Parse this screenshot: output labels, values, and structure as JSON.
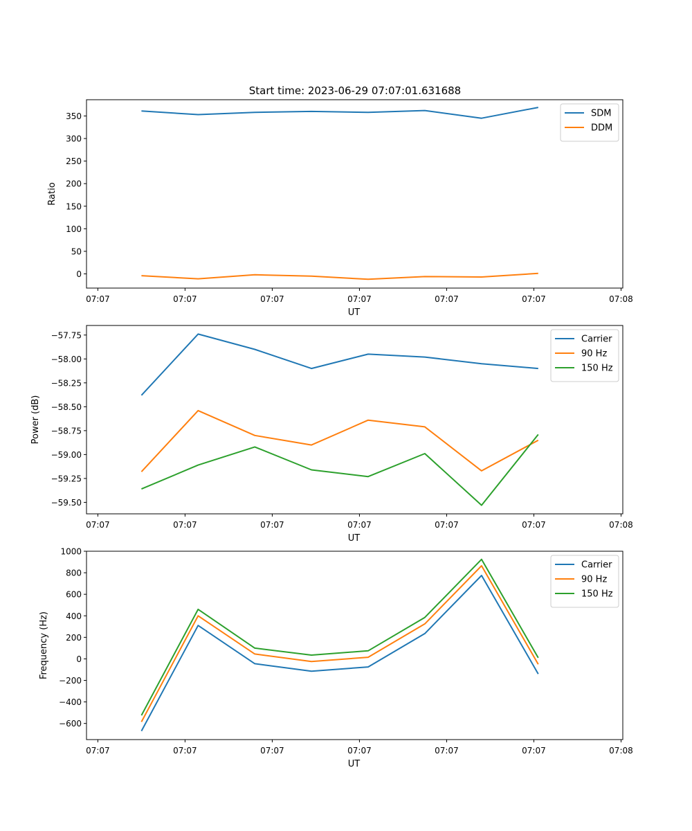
{
  "figure": {
    "title": "Start time: 2023-06-29 07:07:01.631688"
  },
  "chart_data": [
    {
      "type": "line",
      "title": "Start time: 2023-06-29 07:07:01.631688",
      "xlabel": "UT",
      "ylabel": "Ratio",
      "x_tick_labels": [
        "07:07",
        "07:07",
        "07:07",
        "07:07",
        "07:07",
        "07:07",
        "07:08"
      ],
      "x_ticks_s": [
        0,
        1,
        2,
        3,
        4,
        5,
        6
      ],
      "x_s": [
        0.5,
        1.15,
        1.8,
        2.45,
        3.1,
        3.75,
        4.4,
        5.05
      ],
      "xlim_s": [
        -0.13,
        6.02
      ],
      "y_ticks": [
        0,
        50,
        100,
        150,
        200,
        250,
        300,
        350
      ],
      "ylim": [
        -31.5,
        386
      ],
      "grid": false,
      "legend": "top-right",
      "series": [
        {
          "name": "SDM",
          "color": "#1f77b4",
          "values": [
            361,
            353,
            358,
            360,
            358,
            362,
            345,
            369
          ]
        },
        {
          "name": "DDM",
          "color": "#ff7f0e",
          "values": [
            -4,
            -11,
            -2,
            -5,
            -12,
            -6,
            -7,
            1
          ]
        }
      ]
    },
    {
      "type": "line",
      "xlabel": "UT",
      "ylabel": "Power (dB)",
      "x_tick_labels": [
        "07:07",
        "07:07",
        "07:07",
        "07:07",
        "07:07",
        "07:07",
        "07:08"
      ],
      "x_ticks_s": [
        0,
        1,
        2,
        3,
        4,
        5,
        6
      ],
      "x_s": [
        0.5,
        1.15,
        1.8,
        2.45,
        3.1,
        3.75,
        4.4,
        5.05
      ],
      "xlim_s": [
        -0.13,
        6.02
      ],
      "y_ticks": [
        -57.75,
        -58.0,
        -58.25,
        -58.5,
        -58.75,
        -59.0,
        -59.25,
        -59.5
      ],
      "y_tick_labels": [
        "−57.75",
        "−58.00",
        "−58.25",
        "−58.50",
        "−58.75",
        "−59.00",
        "−59.25",
        "−59.50"
      ],
      "ylim": [
        -59.62,
        -57.65
      ],
      "grid": false,
      "legend": "top-right",
      "series": [
        {
          "name": "Carrier",
          "color": "#1f77b4",
          "values": [
            -58.38,
            -57.74,
            -57.9,
            -58.1,
            -57.95,
            -57.98,
            -58.05,
            -58.1
          ]
        },
        {
          "name": "90 Hz",
          "color": "#ff7f0e",
          "values": [
            -59.18,
            -58.54,
            -58.8,
            -58.9,
            -58.64,
            -58.71,
            -59.17,
            -58.85
          ]
        },
        {
          "name": "150 Hz",
          "color": "#2ca02c",
          "values": [
            -59.36,
            -59.11,
            -58.92,
            -59.16,
            -59.23,
            -58.99,
            -59.53,
            -58.79
          ]
        }
      ]
    },
    {
      "type": "line",
      "xlabel": "UT",
      "ylabel": "Frequency (Hz)",
      "x_tick_labels": [
        "07:07",
        "07:07",
        "07:07",
        "07:07",
        "07:07",
        "07:07",
        "07:08"
      ],
      "x_ticks_s": [
        0,
        1,
        2,
        3,
        4,
        5,
        6
      ],
      "x_s": [
        0.5,
        1.15,
        1.8,
        2.45,
        3.1,
        3.75,
        4.4,
        5.05
      ],
      "xlim_s": [
        -0.13,
        6.02
      ],
      "y_ticks": [
        1000,
        800,
        600,
        400,
        200,
        0,
        -200,
        -400,
        -600
      ],
      "y_tick_labels": [
        "1000",
        "800",
        "600",
        "400",
        "200",
        "0",
        "−200",
        "−400",
        "−600"
      ],
      "ylim": [
        -750,
        1000
      ],
      "grid": false,
      "legend": "top-right",
      "series": [
        {
          "name": "Carrier",
          "color": "#1f77b4",
          "values": [
            -670,
            310,
            -45,
            -115,
            -75,
            235,
            775,
            -140
          ]
        },
        {
          "name": "90 Hz",
          "color": "#ff7f0e",
          "values": [
            -585,
            400,
            45,
            -25,
            15,
            325,
            865,
            -50
          ]
        },
        {
          "name": "150 Hz",
          "color": "#2ca02c",
          "values": [
            -525,
            460,
            100,
            35,
            75,
            385,
            925,
            10
          ]
        }
      ]
    }
  ]
}
